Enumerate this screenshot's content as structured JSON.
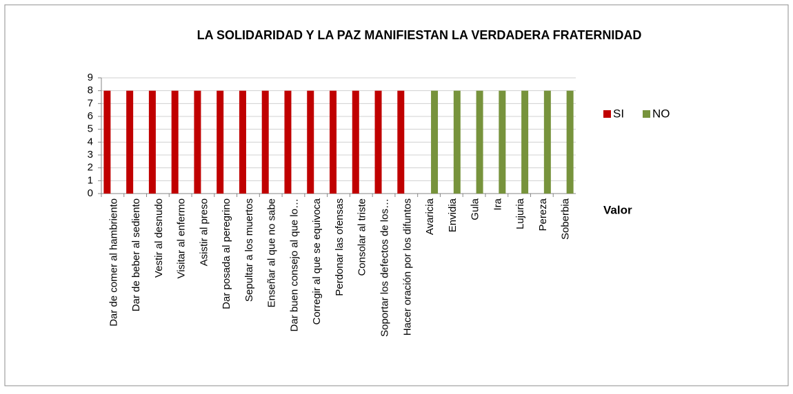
{
  "chart_data": {
    "type": "bar",
    "title": "LA SOLIDARIDAD Y LA PAZ MANIFIESTAN LA VERDADERA FRATERNIDAD",
    "x_label": "Valor",
    "categories": [
      "Dar de comer al hambriento",
      "Dar de beber al sediento",
      "Vestir al desnudo",
      "Visitar al enfermo",
      "Asistir al preso",
      "Dar posada al peregrino",
      "Sepultar a los muertos",
      "Enseñar al que no sabe",
      "Dar buen consejo al que lo…",
      "Corregir al que se equivoca",
      "Perdonar las ofensas",
      "Consolar al triste",
      "Soportar los defectos de los…",
      "Hacer oración por los difuntos",
      "Avaricia",
      "Envidia",
      "Gula",
      "Ira",
      "Lujuria",
      "Pereza",
      "Soberbia"
    ],
    "series": [
      {
        "name": "SI",
        "color": "#c00000",
        "values": [
          8,
          8,
          8,
          8,
          8,
          8,
          8,
          8,
          8,
          8,
          8,
          8,
          8,
          8,
          null,
          null,
          null,
          null,
          null,
          null,
          null
        ]
      },
      {
        "name": "NO",
        "color": "#77933c",
        "values": [
          null,
          null,
          null,
          null,
          null,
          null,
          null,
          null,
          null,
          null,
          null,
          null,
          null,
          null,
          8,
          8,
          8,
          8,
          8,
          8,
          8
        ]
      }
    ],
    "ylim": [
      0,
      9
    ],
    "yticks": [
      0,
      1,
      2,
      3,
      4,
      5,
      6,
      7,
      8,
      9
    ],
    "grid": true,
    "legend": "right"
  }
}
